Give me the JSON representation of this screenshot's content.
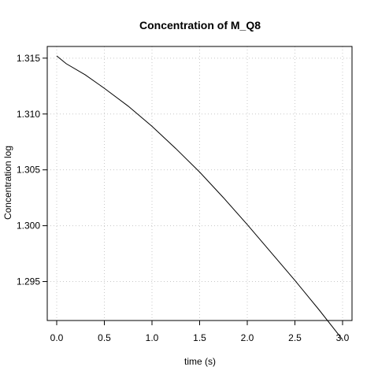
{
  "chart_data": {
    "type": "line",
    "title": "Concentration of M_Q8",
    "xlabel": "time (s)",
    "ylabel": "Concentration log",
    "xlim": [
      0.0,
      3.0
    ],
    "ylim": [
      1.2925,
      1.3152
    ],
    "xticks": [
      0.0,
      0.5,
      1.0,
      1.5,
      2.0,
      2.5,
      3.0
    ],
    "xtick_labels": [
      "0.0",
      "0.5",
      "1.0",
      "1.5",
      "2.0",
      "2.5",
      "3.0"
    ],
    "yticks": [
      1.295,
      1.3,
      1.305,
      1.31,
      1.315
    ],
    "ytick_labels": [
      "1.295",
      "1.300",
      "1.305",
      "1.310",
      "1.315"
    ],
    "grid": true,
    "series": [
      {
        "color": "#000000",
        "x": [
          0.0,
          0.1,
          0.3,
          0.5,
          0.75,
          1.0,
          1.25,
          1.5,
          1.75,
          2.0,
          2.25,
          2.5,
          2.75,
          3.0
        ],
        "y": [
          1.3152,
          1.3145,
          1.3135,
          1.3123,
          1.3107,
          1.3089,
          1.3069,
          1.3048,
          1.3025,
          1.3001,
          1.2976,
          1.2951,
          1.2925,
          1.2898
        ]
      }
    ]
  }
}
